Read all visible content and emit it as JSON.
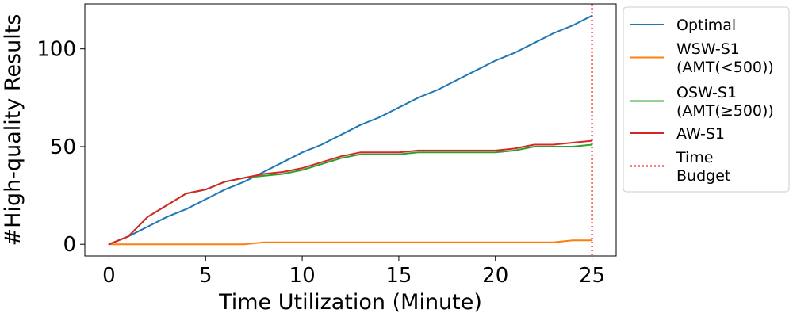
{
  "chart_data": {
    "type": "line",
    "xlabel": "Time Utilization (Minute)",
    "ylabel": "#High-quality Results",
    "xlim": [
      -1.25,
      26.25
    ],
    "ylim": [
      -6,
      123
    ],
    "xticks": [
      "0",
      "5",
      "10",
      "15",
      "20",
      "25"
    ],
    "yticks": [
      "0",
      "50",
      "100"
    ],
    "grid": false,
    "legend_position": "outside-right",
    "x": [
      0,
      1,
      2,
      3,
      4,
      5,
      6,
      7,
      8,
      9,
      10,
      11,
      12,
      13,
      14,
      15,
      16,
      17,
      18,
      19,
      20,
      21,
      22,
      23,
      24,
      25
    ],
    "series": [
      {
        "name": "Optimal",
        "color": "#1f77b4",
        "style": "solid",
        "values": [
          0,
          4,
          9,
          14,
          18,
          23,
          28,
          32,
          37,
          42,
          47,
          51,
          56,
          61,
          65,
          70,
          75,
          79,
          84,
          89,
          94,
          98,
          103,
          108,
          112,
          117
        ]
      },
      {
        "name": "WSW-S1\n(AMT(<500))",
        "color": "#ff7f0e",
        "style": "solid",
        "values": [
          0,
          0,
          0,
          0,
          0,
          0,
          0,
          0,
          1,
          1,
          1,
          1,
          1,
          1,
          1,
          1,
          1,
          1,
          1,
          1,
          1,
          1,
          1,
          1,
          2,
          2
        ]
      },
      {
        "name": "OSW-S1\n(AMT(≥500))",
        "color": "#2ca02c",
        "style": "solid",
        "values": [
          0,
          4,
          14,
          20,
          26,
          28,
          32,
          34,
          35,
          36,
          38,
          41,
          44,
          46,
          46,
          46,
          47,
          47,
          47,
          47,
          47,
          48,
          50,
          50,
          50,
          51
        ]
      },
      {
        "name": "AW-S1",
        "color": "#d62728",
        "style": "solid",
        "values": [
          0,
          4,
          14,
          20,
          26,
          28,
          32,
          34,
          36,
          37,
          39,
          42,
          45,
          47,
          47,
          47,
          48,
          48,
          48,
          48,
          48,
          49,
          51,
          51,
          52,
          53
        ]
      }
    ],
    "vline": {
      "name": "Time\nBudget",
      "x": 25,
      "color": "#ff0000",
      "style": "dotted"
    }
  }
}
